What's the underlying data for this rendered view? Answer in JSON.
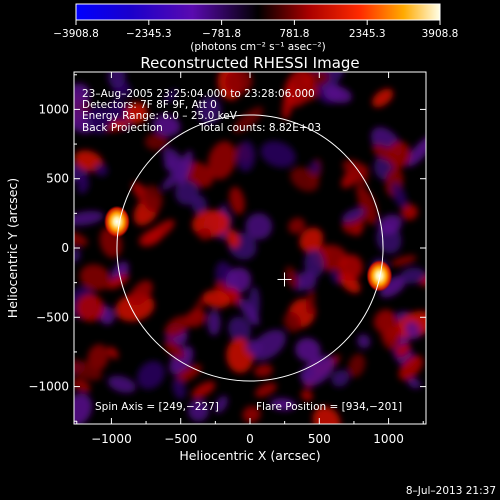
{
  "chart_data": {
    "type": "heatmap",
    "title": "Reconstructed RHESSI Image",
    "xlabel": "Heliocentric X (arcsec)",
    "ylabel": "Heliocentric Y (arcsec)",
    "xlim": [
      -1270,
      1270
    ],
    "ylim": [
      -1270,
      1270
    ],
    "xticks": [
      -1000,
      -500,
      0,
      500,
      1000
    ],
    "yticks": [
      1000,
      500,
      0,
      -500,
      -1000
    ],
    "xtick_labels": [
      "−1000",
      "−500",
      "0",
      "500",
      "1000"
    ],
    "ytick_labels": [
      "1000",
      "500",
      "0",
      "−500",
      "−1000"
    ],
    "colorbar": {
      "min": -3908.8,
      "max": 3908.8,
      "tick_values": [
        -3908.8,
        -2345.3,
        -781.8,
        781.8,
        2345.3,
        3908.8
      ],
      "tick_labels": [
        "−3908.8",
        "−2345.3",
        "−781.8",
        "781.8",
        "2345.3",
        "3908.8"
      ],
      "units": "(photons cm⁻² s⁻¹ asec⁻²)"
    },
    "annotations": {
      "time_range": "23–Aug–2005 23:25:04.000 to 23:28:06.000",
      "detectors": "Detectors: 7F 8F 9F, Att 0",
      "energy_range": "Energy Range: 6.0 – 25.0 keV",
      "method": "Back Projection",
      "total_counts": "Total counts: 8.82E+03",
      "spin_axis": "Spin Axis = [249,−227]",
      "flare_position": "Flare Position = [934,−201]"
    },
    "solar_limb": {
      "center": [
        0,
        0
      ],
      "radius": 960
    },
    "sources": [
      {
        "x": -960,
        "y": 190,
        "peak": 3908.8
      },
      {
        "x": 934,
        "y": -201,
        "peak": 3908.8
      }
    ],
    "spin_axis_marker": {
      "x": 249,
      "y": -227
    }
  },
  "footer": {
    "timestamp": "8–Jul–2013 21:37"
  }
}
